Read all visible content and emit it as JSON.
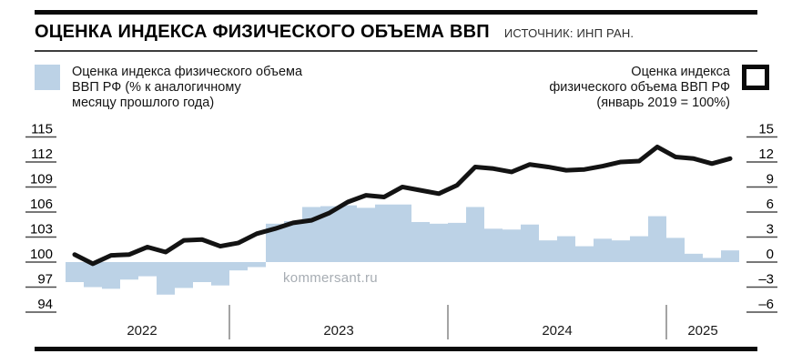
{
  "header": {
    "title": "ОЦЕНКА ИНДЕКСА ФИЗИЧЕСКОГО ОБЪЕМА ВВП",
    "source": "ИСТОЧНИК: ИНП РАН."
  },
  "legend": {
    "bars": {
      "label": "Оценка индекса физического объема\nВВП РФ (% к аналогичному\nмесяцу прошлого года)",
      "swatch_color": "#bcd2e6"
    },
    "line": {
      "label": "Оценка индекса\nфизического объема ВВП РФ\n(январь 2019 = 100%)",
      "swatch_color": "#0a0a0a"
    }
  },
  "watermark": "kommersant.ru",
  "chart_data": {
    "type": "bar+line",
    "x_unit": "month",
    "start_month": "2022-04",
    "years": [
      {
        "label": "2022",
        "months": 9
      },
      {
        "label": "2023",
        "months": 12
      },
      {
        "label": "2024",
        "months": 12
      },
      {
        "label": "2025",
        "months": 4
      }
    ],
    "left_axis": {
      "applies_to": "line",
      "range": [
        94,
        115
      ],
      "ticks": [
        "115",
        "112",
        "109",
        "106",
        "103",
        "100",
        "97",
        "94"
      ]
    },
    "right_axis": {
      "applies_to": "bars",
      "range": [
        -6,
        15
      ],
      "ticks": [
        "15",
        "12",
        "9",
        "6",
        "3",
        "0",
        "–3",
        "–6"
      ]
    },
    "series": [
      {
        "name": "Оценка индекса физического объема ВВП РФ, % к аналогичному месяцу прошлого года",
        "type": "bar",
        "axis": "right",
        "color": "#bcd2e6",
        "values": [
          -2.4,
          -3.0,
          -3.2,
          -2.1,
          -1.7,
          -3.9,
          -3.1,
          -2.4,
          -2.8,
          -1.0,
          -0.6,
          4.6,
          4.9,
          6.6,
          6.7,
          6.8,
          6.5,
          6.9,
          6.9,
          4.8,
          4.6,
          4.7,
          6.6,
          4.0,
          3.9,
          4.5,
          2.6,
          3.1,
          1.9,
          2.8,
          2.6,
          3.1,
          5.5,
          2.9,
          1.0,
          0.5,
          1.4
        ]
      },
      {
        "name": "Оценка индекса физического объема ВВП РФ, январь 2019 = 100%",
        "type": "line",
        "axis": "left",
        "color": "#131313",
        "values": [
          100.9,
          99.8,
          100.8,
          100.9,
          101.8,
          101.2,
          102.6,
          102.7,
          101.9,
          102.3,
          103.4,
          104.0,
          104.7,
          105.0,
          105.9,
          107.2,
          108.0,
          107.8,
          109.0,
          108.6,
          108.2,
          109.2,
          111.4,
          111.2,
          110.8,
          111.7,
          111.4,
          111.0,
          111.1,
          111.5,
          112.0,
          112.1,
          113.8,
          112.6,
          112.4,
          111.8,
          112.4
        ]
      }
    ]
  }
}
